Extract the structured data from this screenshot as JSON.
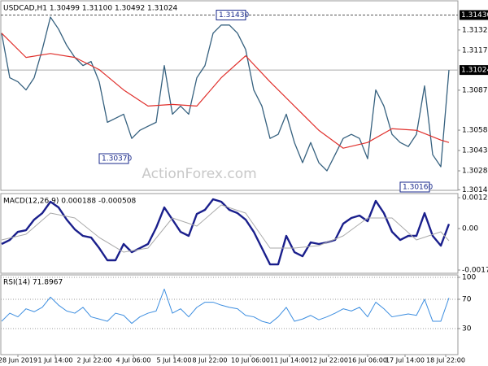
{
  "chart_data": [
    {
      "type": "line",
      "title": "USDCAD,H1 1.30499 1.31100 1.30492 1.31024",
      "watermark": "ActionForex.com",
      "ylim": [
        1.30136,
        1.31535
      ],
      "yticks": [
        {
          "value": 1.3132,
          "label": "1.31320"
        },
        {
          "value": 1.3117,
          "label": "1.31170"
        },
        {
          "value": 1.30875,
          "label": "1.30875"
        },
        {
          "value": 1.3058,
          "label": "1.30580"
        },
        {
          "value": 1.3043,
          "label": "1.30430"
        },
        {
          "value": 1.3028,
          "label": "1.30280"
        },
        {
          "value": 1.3014,
          "label": "1.30140"
        }
      ],
      "levels": [
        {
          "value": 1.3143,
          "label": "1.31430",
          "line": "dashed"
        },
        {
          "value": 1.31024,
          "label": "1.31024",
          "line": "solid"
        }
      ],
      "callouts": [
        {
          "x": 26.4,
          "value": 1.3143,
          "label": "1.31430"
        },
        {
          "x": 12,
          "value": 1.3037,
          "label": "1.30370"
        },
        {
          "x": 49,
          "value": 1.3016,
          "label": "1.30160"
        }
      ],
      "series": [
        {
          "color": "#36617f",
          "width": 1.3,
          "x": [
            0,
            1,
            2,
            3,
            4,
            5,
            6,
            7,
            8,
            9,
            10,
            11,
            12,
            13,
            14,
            15,
            16,
            17,
            18,
            19,
            20,
            21,
            22,
            23,
            24,
            25,
            26,
            27,
            28,
            29,
            30,
            31,
            32,
            33,
            34,
            35,
            36,
            37,
            38,
            39,
            40,
            41,
            42,
            43,
            44,
            45,
            46,
            47,
            48,
            49,
            50,
            51,
            52,
            53,
            54,
            55
          ],
          "values": [
            1.31296,
            1.30967,
            1.30937,
            1.30877,
            1.30967,
            1.31176,
            1.31415,
            1.31326,
            1.31206,
            1.31117,
            1.31057,
            1.31087,
            1.30937,
            1.30638,
            1.30668,
            1.30698,
            1.30519,
            1.30579,
            1.30609,
            1.30638,
            1.31057,
            1.30698,
            1.30758,
            1.30698,
            1.30967,
            1.31057,
            1.31296,
            1.31356,
            1.31356,
            1.31296,
            1.31176,
            1.30877,
            1.30758,
            1.30519,
            1.30549,
            1.30698,
            1.30489,
            1.3034,
            1.30489,
            1.3034,
            1.3028,
            1.30399,
            1.30519,
            1.30549,
            1.30519,
            1.30369,
            1.30877,
            1.30758,
            1.30549,
            1.30489,
            1.30459,
            1.30549,
            1.30907,
            1.30399,
            1.3031,
            1.31024
          ]
        },
        {
          "color": "#e0302c",
          "width": 1.2,
          "x": [
            0,
            3,
            6,
            9,
            12,
            15,
            18,
            21,
            24,
            27,
            30,
            33,
            36,
            39,
            42,
            45,
            48,
            51,
            54,
            55
          ],
          "values": [
            1.31296,
            1.31117,
            1.31146,
            1.31117,
            1.31027,
            1.30877,
            1.30758,
            1.3077,
            1.30758,
            1.30967,
            1.31129,
            1.30937,
            1.30758,
            1.30579,
            1.30447,
            1.30489,
            1.30591,
            1.30579,
            1.30507,
            1.30489
          ]
        }
      ]
    },
    {
      "type": "line",
      "title": "MACD(12,26,9) 0.000188 -0.000508",
      "ylim": [
        -0.001864,
        0.001458
      ],
      "yticks": [
        0.001287,
        {
          "value": 0,
          "label": "0.00"
        },
        -0.001729
      ],
      "series": [
        {
          "color": "#1a1f8c",
          "width": 2.4,
          "x": [
            0,
            1,
            2,
            3,
            4,
            5,
            6,
            7,
            8,
            9,
            10,
            11,
            12,
            13,
            14,
            15,
            16,
            17,
            18,
            19,
            20,
            21,
            22,
            23,
            24,
            25,
            26,
            27,
            28,
            29,
            30,
            31,
            32,
            33,
            34,
            35,
            36,
            37,
            38,
            39,
            40,
            41,
            42,
            43,
            44,
            45,
            46,
            47,
            48,
            49,
            50,
            51,
            52,
            53,
            54,
            55
          ],
          "values": [
            -0.000644,
            -0.000475,
            -0.000136,
            -6.8e-05,
            0.000373,
            0.000644,
            0.001119,
            0.000881,
            0.000373,
            -3.4e-05,
            -0.000305,
            -0.000373,
            -0.000814,
            -0.001322,
            -0.001322,
            -0.000644,
            -0.000983,
            -0.000814,
            -0.000644,
            3.4e-05,
            0.000881,
            0.000373,
            -0.000136,
            -0.000305,
            0.00061,
            0.00078,
            0.00122,
            0.001119,
            0.00078,
            0.000644,
            0.000373,
            -0.000136,
            -0.000814,
            -0.001492,
            -0.001492,
            -0.000305,
            -0.000983,
            -0.001153,
            -0.000576,
            -0.000644,
            -0.000576,
            -0.000475,
            0.000203,
            0.000441,
            0.000542,
            0.000305,
            0.001153,
            0.000644,
            -0.000136,
            -0.000475,
            -0.000305,
            -0.000305,
            0.000644,
            -0.000305,
            -0.000712,
            0.000188
          ]
        },
        {
          "color": "#aaaaaa",
          "width": 1,
          "x": [
            0,
            3,
            6,
            9,
            12,
            15,
            18,
            21,
            24,
            27,
            30,
            33,
            36,
            39,
            42,
            45,
            48,
            51,
            54,
            55
          ],
          "values": [
            -0.000475,
            -0.000237,
            0.000644,
            0.000441,
            -0.000373,
            -0.000983,
            -0.000814,
            0.000441,
            0.000102,
            0.000983,
            0.000644,
            -0.000814,
            -0.000814,
            -0.000712,
            -0.000305,
            0.000441,
            0.000441,
            -0.000475,
            -0.000136,
            -0.000508
          ]
        }
      ]
    },
    {
      "type": "line",
      "title": "RSI(14) 71.8967",
      "grid": "dotted",
      "ylim": [
        -5.6,
        103.3
      ],
      "yticks": [
        100,
        70,
        30
      ],
      "xticks": [
        {
          "value": 2,
          "label": "28 Jun 2019"
        },
        {
          "value": 6.6,
          "label": "1 Jul 14:00"
        },
        {
          "value": 11.4,
          "label": "2 Jul 22:00"
        },
        {
          "value": 16.2,
          "label": "4 Jul 06:00"
        },
        {
          "value": 21.2,
          "label": "5 Jul 14:00"
        },
        {
          "value": 25.6,
          "label": "8 Jul 22:00"
        },
        {
          "value": 30.6,
          "label": "10 Jul 06:00"
        },
        {
          "value": 35.4,
          "label": "11 Jul 14:00"
        },
        {
          "value": 40.2,
          "label": "12 Jul 22:00"
        },
        {
          "value": 45,
          "label": "16 Jul 06:00"
        },
        {
          "value": 49.6,
          "label": "17 Jul 14:00"
        },
        {
          "value": 54.6,
          "label": "18 Jul 22:00"
        }
      ],
      "series": [
        {
          "color": "#3d8ee0",
          "width": 1,
          "x": [
            0,
            1,
            2,
            3,
            4,
            5,
            6,
            7,
            8,
            9,
            10,
            11,
            12,
            13,
            14,
            15,
            16,
            17,
            18,
            19,
            20,
            21,
            22,
            23,
            24,
            25,
            26,
            27,
            28,
            29,
            30,
            31,
            32,
            33,
            34,
            35,
            36,
            37,
            38,
            39,
            40,
            41,
            42,
            43,
            44,
            45,
            46,
            47,
            48,
            49,
            50,
            51,
            52,
            53,
            54,
            55
          ],
          "values": [
            40,
            51,
            46,
            57,
            53,
            59,
            73,
            62,
            54,
            51,
            59,
            46,
            43,
            40,
            51,
            48,
            37,
            46,
            51,
            54,
            84,
            51,
            57,
            46,
            59,
            66,
            66,
            62,
            59,
            57,
            48,
            46,
            40,
            37,
            46,
            59,
            40,
            43,
            48,
            42,
            46,
            51,
            57,
            54,
            59,
            46,
            66,
            57,
            46,
            48,
            50,
            48,
            70,
            40,
            40,
            71.8967
          ]
        }
      ]
    }
  ]
}
